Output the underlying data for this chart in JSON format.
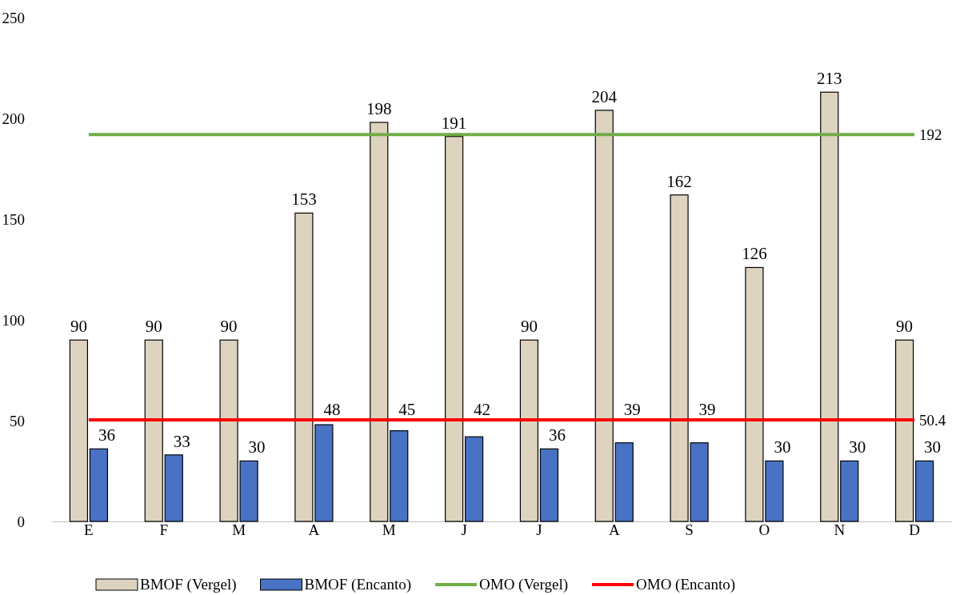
{
  "chart_data": {
    "type": "bar",
    "categories": [
      "E",
      "F",
      "M",
      "A",
      "M",
      "J",
      "J",
      "A",
      "S",
      "O",
      "N",
      "D"
    ],
    "series": [
      {
        "name": "BMOF (Vergel)",
        "color": "#ddd3bf",
        "values": [
          90,
          90,
          90,
          153,
          198,
          191,
          90,
          204,
          162,
          126,
          213,
          90
        ],
        "value_labels": [
          "90",
          "90",
          "90",
          "153",
          "198",
          "191",
          "90",
          "204",
          "162",
          "126",
          "213",
          "90"
        ]
      },
      {
        "name": "BMOF (Encanto)",
        "color": "#4a72c4",
        "values": [
          36,
          33,
          30,
          48,
          45,
          42,
          36,
          39,
          39,
          30,
          30,
          30
        ],
        "value_labels": [
          "36",
          "33",
          "30",
          "48",
          "45",
          "42",
          "36",
          "39",
          "39",
          "30",
          "30",
          "30"
        ]
      },
      {
        "name": "OMO (Vergel)",
        "type": "line",
        "color": "#70ad47",
        "values": [
          192,
          192,
          192,
          192,
          192,
          192,
          192,
          192,
          192,
          192,
          192,
          192
        ],
        "value_labels": [
          null,
          null,
          null,
          null,
          null,
          null,
          null,
          null,
          null,
          null,
          null,
          "192"
        ]
      },
      {
        "name": "OMO (Encanto)",
        "type": "line",
        "color": "#ff0000",
        "values": [
          50.4,
          50.4,
          50.4,
          50.4,
          50.4,
          50.4,
          50.4,
          50.4,
          50.4,
          50.4,
          50.4,
          50.4
        ],
        "value_labels": [
          null,
          null,
          null,
          null,
          null,
          null,
          null,
          null,
          null,
          null,
          null,
          "50.4"
        ]
      }
    ],
    "ylim": [
      0,
      250
    ],
    "yticks": [
      0,
      50,
      100,
      150,
      200,
      250
    ],
    "grid": false,
    "legend": "bottom",
    "marker": "none",
    "line_style": "solid"
  }
}
